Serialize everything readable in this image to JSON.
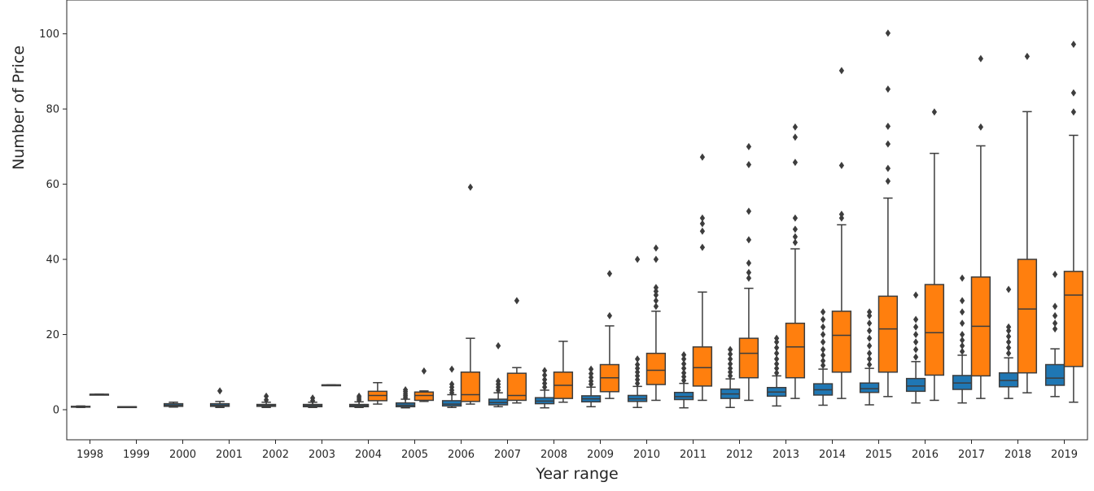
{
  "chart_data": {
    "type": "boxplot",
    "title": "",
    "xlabel": "Year range",
    "ylabel": "Number of Price",
    "ylim": [
      -8,
      109
    ],
    "yticks": [
      0,
      20,
      40,
      60,
      80,
      100
    ],
    "grid": false,
    "legend": "none",
    "categories": [
      "1998",
      "1999",
      "2000",
      "2001",
      "2002",
      "2003",
      "2004",
      "2005",
      "2006",
      "2007",
      "2008",
      "2009",
      "2010",
      "2011",
      "2012",
      "2013",
      "2014",
      "2015",
      "2016",
      "2017",
      "2018",
      "2019"
    ],
    "series": [
      {
        "color": "#1f77b4",
        "boxes": [
          {
            "category": "1998",
            "whislo": 0.6,
            "q1": 0.7,
            "med": 0.8,
            "q3": 0.9,
            "whishi": 1.0,
            "fliers": []
          },
          {
            "category": "1999",
            "whislo": 0.8,
            "q1": 0.8,
            "med": 0.8,
            "q3": 0.8,
            "whislo_": 0,
            "whishi": 0.8,
            "fliers": []
          },
          {
            "category": "2000",
            "whislo": 0.7,
            "q1": 0.9,
            "med": 1.2,
            "q3": 1.6,
            "whishi": 2.0,
            "fliers": []
          },
          {
            "category": "2001",
            "whislo": 0.6,
            "q1": 0.9,
            "med": 1.2,
            "q3": 1.6,
            "whishi": 2.2,
            "fliers": [
              5
            ]
          },
          {
            "category": "2002",
            "whislo": 0.6,
            "q1": 0.9,
            "med": 1.1,
            "q3": 1.4,
            "whishi": 2.0,
            "fliers": [
              2.6,
              3.6
            ]
          },
          {
            "category": "2003",
            "whislo": 0.6,
            "q1": 0.8,
            "med": 1.1,
            "q3": 1.4,
            "whishi": 2.0,
            "fliers": [
              2.4,
              3.1
            ]
          },
          {
            "category": "2004",
            "whislo": 0.6,
            "q1": 0.8,
            "med": 1.1,
            "q3": 1.4,
            "whishi": 2.1,
            "fliers": [
              2.6,
              3.1,
              3.6
            ]
          },
          {
            "category": "2005",
            "whislo": 0.5,
            "q1": 0.8,
            "med": 1.2,
            "q3": 1.8,
            "whishi": 2.8,
            "fliers": [
              3.2,
              3.7,
              4.2,
              4.8,
              5.3
            ]
          },
          {
            "category": "2006",
            "whislo": 0.6,
            "q1": 1.0,
            "med": 1.5,
            "q3": 2.4,
            "whishi": 4.0,
            "fliers": [
              4.5,
              5.2,
              6.0,
              6.8,
              10.8
            ]
          },
          {
            "category": "2007",
            "whislo": 0.8,
            "q1": 1.3,
            "med": 1.9,
            "q3": 2.8,
            "whishi": 4.5,
            "fliers": [
              5.2,
              6.0,
              6.8,
              7.6,
              17
            ]
          },
          {
            "category": "2008",
            "whislo": 0.5,
            "q1": 1.6,
            "med": 2.3,
            "q3": 3.2,
            "whishi": 5.2,
            "fliers": [
              6.0,
              7.0,
              8.0,
              9.2,
              10.4
            ]
          },
          {
            "category": "2009",
            "whislo": 0.8,
            "q1": 2.1,
            "med": 2.9,
            "q3": 3.7,
            "whishi": 6.0,
            "fliers": [
              6.8,
              7.6,
              8.6,
              9.6,
              10.8
            ]
          },
          {
            "category": "2010",
            "whislo": 0.6,
            "q1": 2.2,
            "med": 2.9,
            "q3": 3.8,
            "whishi": 6.2,
            "fliers": [
              7.0,
              8.0,
              9.0,
              10.0,
              11.0,
              12.0,
              13.5,
              40
            ]
          },
          {
            "category": "2011",
            "whislo": 0.5,
            "q1": 2.7,
            "med": 3.5,
            "q3": 4.6,
            "whishi": 7.0,
            "fliers": [
              7.8,
              8.8,
              9.8,
              11.0,
              12.2,
              13.5,
              14.6
            ]
          },
          {
            "category": "2012",
            "whislo": 0.6,
            "q1": 3.0,
            "med": 4.2,
            "q3": 5.5,
            "whishi": 8.2,
            "fliers": [
              9.0,
              10.0,
              11.0,
              12.2,
              13.5,
              14.8,
              16.0
            ]
          },
          {
            "category": "2013",
            "whislo": 1.0,
            "q1": 3.6,
            "med": 4.7,
            "q3": 5.9,
            "whishi": 9.0,
            "fliers": [
              9.8,
              11.0,
              12.2,
              13.5,
              15.0,
              16.5,
              18.0,
              19.0
            ]
          },
          {
            "category": "2014",
            "whislo": 1.2,
            "q1": 3.9,
            "med": 5.3,
            "q3": 6.9,
            "whishi": 10.8,
            "fliers": [
              11.8,
              13.0,
              14.5,
              16.0,
              18.0,
              20.0,
              22.0,
              24.0,
              26.0
            ]
          },
          {
            "category": "2015",
            "whislo": 1.3,
            "q1": 4.6,
            "med": 5.6,
            "q3": 7.1,
            "whishi": 11.0,
            "fliers": [
              12.0,
              13.5,
              15.0,
              17.0,
              19.0,
              21.0,
              23.0,
              25.0,
              26.0
            ]
          },
          {
            "category": "2016",
            "whislo": 1.8,
            "q1": 4.9,
            "med": 6.3,
            "q3": 8.3,
            "whishi": 12.8,
            "fliers": [
              14.0,
              16.0,
              18.0,
              20.0,
              22.0,
              24.0,
              30.5
            ]
          },
          {
            "category": "2017",
            "whislo": 1.8,
            "q1": 5.4,
            "med": 7.1,
            "q3": 9.1,
            "whishi": 14.5,
            "fliers": [
              15.5,
              17.0,
              18.5,
              20.0,
              23.0,
              26.0,
              29.0,
              35.0
            ]
          },
          {
            "category": "2018",
            "whislo": 3.0,
            "q1": 6.1,
            "med": 7.8,
            "q3": 9.8,
            "whishi": 13.8,
            "fliers": [
              15.0,
              16.5,
              18.0,
              19.5,
              21.0,
              22.0,
              32.0
            ]
          },
          {
            "category": "2019",
            "whislo": 3.5,
            "q1": 6.5,
            "med": 8.4,
            "q3": 12.0,
            "whishi": 16.2,
            "fliers": [
              21.5,
              23.0,
              25.0,
              27.5,
              36.0
            ]
          }
        ]
      },
      {
        "color": "#ff7f0e",
        "boxes": [
          {
            "category": "1998",
            "whislo": 4.1,
            "q1": 4.1,
            "med": 4.1,
            "q3": 4.1,
            "whishi": 4.1,
            "fliers": []
          },
          {
            "category": "1999",
            "empty": true
          },
          {
            "category": "2000",
            "empty": true
          },
          {
            "category": "2001",
            "empty": true
          },
          {
            "category": "2002",
            "empty": true
          },
          {
            "category": "2003",
            "whislo": 6.6,
            "q1": 6.6,
            "med": 6.6,
            "q3": 6.6,
            "whishi": 6.6,
            "fliers": []
          },
          {
            "category": "2004",
            "whislo": 1.5,
            "q1": 2.4,
            "med": 3.8,
            "q3": 4.9,
            "whishi": 7.2,
            "fliers": []
          },
          {
            "category": "2005",
            "whislo": 2.2,
            "q1": 2.5,
            "med": 3.8,
            "q3": 4.7,
            "whishi": 5.0,
            "fliers": [
              10.3
            ]
          },
          {
            "category": "2006",
            "whislo": 1.5,
            "q1": 2.2,
            "med": 4.0,
            "q3": 10.0,
            "whishi": 19.0,
            "fliers": [
              59.2
            ]
          },
          {
            "category": "2007",
            "whislo": 1.8,
            "q1": 2.5,
            "med": 3.8,
            "q3": 9.7,
            "whishi": 11.2,
            "fliers": [
              29.0
            ]
          },
          {
            "category": "2008",
            "whislo": 2.0,
            "q1": 3.0,
            "med": 6.5,
            "q3": 10.0,
            "whishi": 18.2,
            "fliers": []
          },
          {
            "category": "2009",
            "whislo": 3.0,
            "q1": 4.8,
            "med": 8.5,
            "q3": 12.0,
            "whishi": 22.3,
            "fliers": [
              25.0,
              36.2
            ]
          },
          {
            "category": "2010",
            "whislo": 2.5,
            "q1": 6.7,
            "med": 10.5,
            "q3": 15.0,
            "whishi": 26.2,
            "fliers": [
              27.5,
              29.0,
              30.5,
              31.5,
              32.5,
              40.0,
              43.0
            ]
          },
          {
            "category": "2011",
            "whislo": 2.5,
            "q1": 6.3,
            "med": 11.2,
            "q3": 16.7,
            "whishi": 31.3,
            "fliers": [
              43.2,
              47.5,
              49.5,
              51.0,
              67.2
            ]
          },
          {
            "category": "2012",
            "whislo": 2.5,
            "q1": 8.5,
            "med": 15.0,
            "q3": 19.0,
            "whishi": 32.3,
            "fliers": [
              35.0,
              36.5,
              39.0,
              45.2,
              52.8,
              65.2,
              70.0
            ]
          },
          {
            "category": "2013",
            "whislo": 3.0,
            "q1": 8.5,
            "med": 16.7,
            "q3": 23.0,
            "whishi": 42.8,
            "fliers": [
              44.5,
              46.0,
              48.0,
              51.0,
              65.8,
              72.5,
              75.2
            ]
          },
          {
            "category": "2014",
            "whislo": 3.0,
            "q1": 10.0,
            "med": 19.8,
            "q3": 26.2,
            "whishi": 49.2,
            "fliers": [
              51.0,
              52.0,
              65.0,
              90.2
            ]
          },
          {
            "category": "2015",
            "whislo": 3.5,
            "q1": 10.0,
            "med": 21.5,
            "q3": 30.2,
            "whishi": 56.3,
            "fliers": [
              60.8,
              64.2,
              70.7,
              75.4,
              85.3,
              100.2
            ]
          },
          {
            "category": "2016",
            "whislo": 2.5,
            "q1": 9.2,
            "med": 20.5,
            "q3": 33.3,
            "whishi": 68.2,
            "fliers": [
              79.2
            ]
          },
          {
            "category": "2017",
            "whislo": 3.0,
            "q1": 9.0,
            "med": 22.2,
            "q3": 35.3,
            "whishi": 70.2,
            "fliers": [
              75.2,
              93.4
            ]
          },
          {
            "category": "2018",
            "whislo": 4.5,
            "q1": 9.8,
            "med": 26.8,
            "q3": 40.0,
            "whishi": 79.3,
            "fliers": [
              94.0
            ]
          },
          {
            "category": "2019",
            "whislo": 2.0,
            "q1": 11.5,
            "med": 30.5,
            "q3": 36.8,
            "whishi": 73.0,
            "fliers": [
              79.2,
              84.3,
              97.2
            ]
          }
        ]
      }
    ]
  }
}
